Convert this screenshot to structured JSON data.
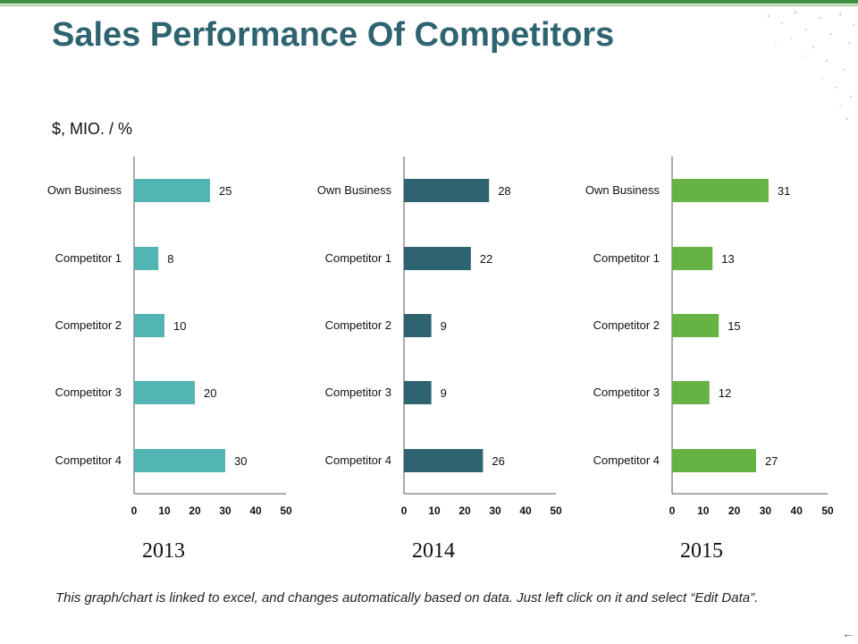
{
  "page": {
    "title": "Sales Performance Of Competitors",
    "unit_label": "$, MIO. / %",
    "footnote": "This graph/chart is linked to excel, and changes automatically based on data. Just left click on it and select “Edit Data”.",
    "nav_icon": "back-arrow-icon"
  },
  "chart_data": [
    {
      "type": "bar",
      "orientation": "horizontal",
      "title": "2013",
      "categories": [
        "Own Business",
        "Competitor 1",
        "Competitor 2",
        "Competitor 3",
        "Competitor 4"
      ],
      "values": [
        25,
        8,
        10,
        20,
        30
      ],
      "xlim": [
        0,
        50
      ],
      "xticks": [
        0,
        10,
        20,
        30,
        40,
        50
      ],
      "color": "#52b5b3",
      "grid": false
    },
    {
      "type": "bar",
      "orientation": "horizontal",
      "title": "2014",
      "categories": [
        "Own Business",
        "Competitor 1",
        "Competitor 2",
        "Competitor 3",
        "Competitor 4"
      ],
      "values": [
        28,
        22,
        9,
        9,
        26
      ],
      "xlim": [
        0,
        50
      ],
      "xticks": [
        0,
        10,
        20,
        30,
        40,
        50
      ],
      "color": "#2e6470",
      "grid": false
    },
    {
      "type": "bar",
      "orientation": "horizontal",
      "title": "2015",
      "categories": [
        "Own Business",
        "Competitor 1",
        "Competitor 2",
        "Competitor 3",
        "Competitor 4"
      ],
      "values": [
        31,
        13,
        15,
        12,
        27
      ],
      "xlim": [
        0,
        50
      ],
      "xticks": [
        0,
        10,
        20,
        30,
        40,
        50
      ],
      "color": "#66b245",
      "grid": false
    }
  ]
}
